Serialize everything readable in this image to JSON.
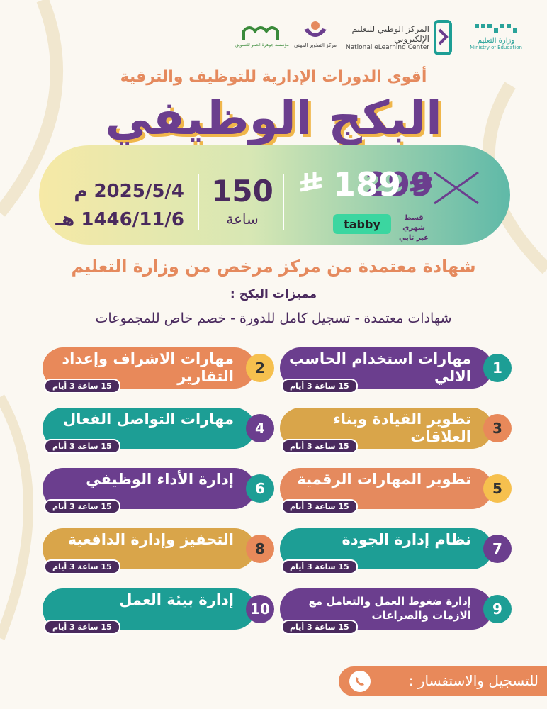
{
  "logos": {
    "ministry": {
      "name": "وزارة التعليم",
      "english": "Ministry of Education"
    },
    "nelc": {
      "name": "المركز الوطني للتعليم الإلكتروني",
      "english": "National eLearning Center"
    },
    "pdc": {
      "name": "مركز التطوير المهني"
    },
    "company": {
      "name": "مؤسسة جوهرة العمو للتسويق"
    }
  },
  "header": {
    "subtitle": "أقوى الدورات الإدارية للتوظيف والترقية",
    "title": "البكج الوظيفي"
  },
  "offer": {
    "old_price": "299",
    "new_price": "189",
    "tabby": {
      "brand": "tabby",
      "line1": "قسط شهري",
      "line2": "عبر تابي"
    },
    "hours": "150",
    "hours_label": "ساعة",
    "date_gregorian": "2025/5/4 م",
    "date_hijri": "1446/11/6 هـ"
  },
  "certificate": "شهادة معتمدة من مركز مرخص من وزارة التعليم",
  "features": {
    "heading": "مميزات البكج :",
    "text": "شهادات معتمدة - تسجيل كامل للدورة - خصم خاص للمجموعات"
  },
  "courses": [
    {
      "number": "1",
      "name": "مهارات استخدام الحاسب الالي",
      "badge": "15 ساعة 3 أيام"
    },
    {
      "number": "2",
      "name": "مهارات الاشراف وإعداد التقارير",
      "badge": "15 ساعة 3 أيام"
    },
    {
      "number": "3",
      "name": "تطوير القيادة وبناء العلاقات",
      "badge": "15 ساعة 3 أيام"
    },
    {
      "number": "4",
      "name": "مهارات التواصل الفعال",
      "badge": "15 ساعة 3 أيام"
    },
    {
      "number": "5",
      "name": "تطوير المهارات الرقمية",
      "badge": "15 ساعة 3 أيام"
    },
    {
      "number": "6",
      "name": "إدارة الأداء الوظيفي",
      "badge": "15 ساعة 3 أيام"
    },
    {
      "number": "7",
      "name": "نظام إدارة الجودة",
      "badge": "15 ساعة 3 أيام"
    },
    {
      "number": "8",
      "name": "التحفيز وإدارة الدافعية",
      "badge": "15 ساعة 3 أيام"
    },
    {
      "number": "9",
      "name": "إدارة ضغوط العمل والتعامل مع الازمات والصراعات",
      "badge": "15 ساعة 3 أيام"
    },
    {
      "number": "10",
      "name": "إدارة بيئة العمل",
      "badge": "15 ساعة 3 أيام"
    }
  ],
  "footer": {
    "contact": "للتسجيل والاستفسار :"
  }
}
